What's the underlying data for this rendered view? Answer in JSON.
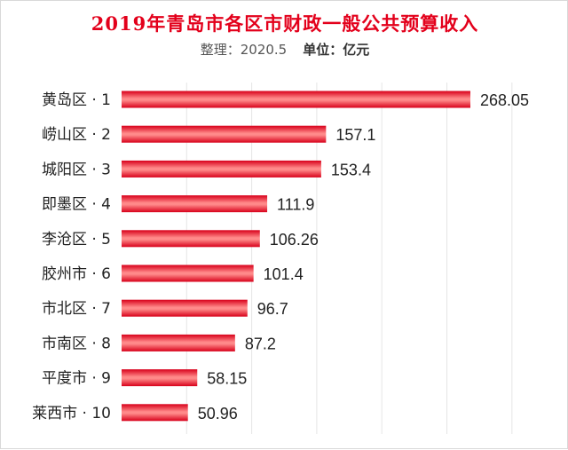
{
  "title": "2019年青岛市各区市财政一般公共预算收入",
  "subtitle": {
    "arrange": "整理：2020.5",
    "unit": "单位：亿元"
  },
  "colors": {
    "title": "#e3001b",
    "bar_dark": "#d8001a",
    "bar_light": "#ff8a8a",
    "grid": "#e6e6e6"
  },
  "chart_data": {
    "type": "bar",
    "orientation": "horizontal",
    "title": "2019年青岛市各区市财政一般公共预算收入",
    "categories": [
      "黄岛区 · 1",
      "崂山区 · 2",
      "城阳区 · 3",
      "即墨区 · 4",
      "李沧区 · 5",
      "胶州市 · 6",
      "市北区 · 7",
      "市南区 · 8",
      "平度市 · 9",
      "莱西市 · 10"
    ],
    "values": [
      268.05,
      157.1,
      153.4,
      111.9,
      106.26,
      101.4,
      96.7,
      87.2,
      58.15,
      50.96
    ],
    "value_labels": [
      "268.05",
      "157.1",
      "153.4",
      "111.9",
      "106.26",
      "101.4",
      "96.7",
      "87.2",
      "58.15",
      "50.96"
    ],
    "xlim": [
      0,
      300
    ],
    "grid": true,
    "xlabel": "",
    "ylabel": ""
  }
}
